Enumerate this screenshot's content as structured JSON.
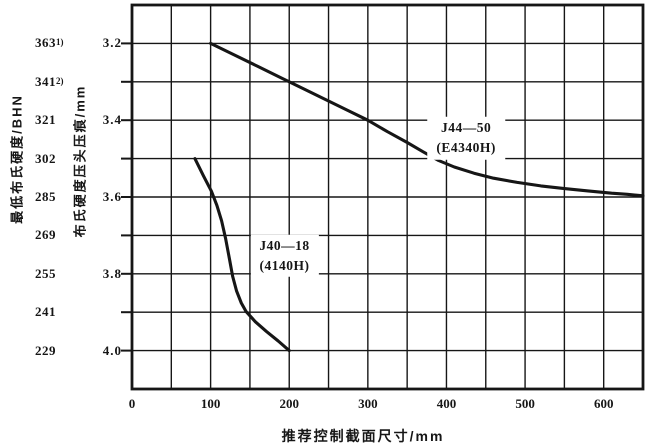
{
  "figure": {
    "background": "#ffffff",
    "ink": "#161616"
  },
  "chart_data": {
    "type": "line",
    "title": "",
    "grid": "on",
    "x_axis": {
      "title": "推荐控制截面尺寸/mm",
      "min": 0,
      "max": 650,
      "grid_step": 50,
      "ticks": [
        {
          "value": 0,
          "label": "0"
        },
        {
          "value": 100,
          "label": "100"
        },
        {
          "value": 200,
          "label": "200"
        },
        {
          "value": 300,
          "label": "300"
        },
        {
          "value": 400,
          "label": "400"
        },
        {
          "value": 500,
          "label": "500"
        },
        {
          "value": 600,
          "label": "600"
        }
      ]
    },
    "y_axis": {
      "title": "布氏硬度压头压痕/mm",
      "min": 3.1,
      "max": 4.1,
      "grid_step": 0.1,
      "inverted": true,
      "ticks": [
        {
          "value": 3.2,
          "label": "3.2"
        },
        {
          "value": 3.4,
          "label": "3.4"
        },
        {
          "value": 3.6,
          "label": "3.6"
        },
        {
          "value": 3.8,
          "label": "3.8"
        },
        {
          "value": 4.0,
          "label": "4.0"
        }
      ]
    },
    "y_axis_secondary": {
      "title": "最低布氏硬度/BHN",
      "ticks": [
        {
          "value": 3.2,
          "label": "363",
          "footnote": "1)"
        },
        {
          "value": 3.3,
          "label": "341",
          "footnote": "2)"
        },
        {
          "value": 3.4,
          "label": "321",
          "footnote": ""
        },
        {
          "value": 3.5,
          "label": "302",
          "footnote": ""
        },
        {
          "value": 3.6,
          "label": "285",
          "footnote": ""
        },
        {
          "value": 3.7,
          "label": "269",
          "footnote": ""
        },
        {
          "value": 3.8,
          "label": "255",
          "footnote": ""
        },
        {
          "value": 3.9,
          "label": "241",
          "footnote": ""
        },
        {
          "value": 4.0,
          "label": "229",
          "footnote": ""
        }
      ]
    },
    "series": [
      {
        "name": "J44—50",
        "alloy": "(E4340H)",
        "label_anchor": {
          "x": 425,
          "y": 3.447
        },
        "points": [
          [
            100,
            3.2
          ],
          [
            130,
            3.23
          ],
          [
            160,
            3.26
          ],
          [
            190,
            3.29
          ],
          [
            220,
            3.32
          ],
          [
            250,
            3.35
          ],
          [
            275,
            3.375
          ],
          [
            300,
            3.4
          ],
          [
            325,
            3.43
          ],
          [
            350,
            3.458
          ],
          [
            370,
            3.482
          ],
          [
            390,
            3.505
          ],
          [
            410,
            3.522
          ],
          [
            435,
            3.538
          ],
          [
            460,
            3.551
          ],
          [
            490,
            3.562
          ],
          [
            520,
            3.571
          ],
          [
            550,
            3.578
          ],
          [
            580,
            3.584
          ],
          [
            610,
            3.59
          ],
          [
            630,
            3.593
          ],
          [
            650,
            3.597
          ]
        ]
      },
      {
        "name": "J40—18",
        "alloy": "(4140H)",
        "label_anchor": {
          "x": 194,
          "y": 3.753
        },
        "points": [
          [
            80,
            3.5
          ],
          [
            91,
            3.545
          ],
          [
            101,
            3.585
          ],
          [
            108,
            3.622
          ],
          [
            114,
            3.662
          ],
          [
            119,
            3.708
          ],
          [
            124,
            3.762
          ],
          [
            128,
            3.806
          ],
          [
            133,
            3.845
          ],
          [
            139,
            3.876
          ],
          [
            145,
            3.898
          ],
          [
            157,
            3.925
          ],
          [
            171,
            3.95
          ],
          [
            186,
            3.975
          ],
          [
            200,
            4.0
          ]
        ]
      }
    ]
  }
}
